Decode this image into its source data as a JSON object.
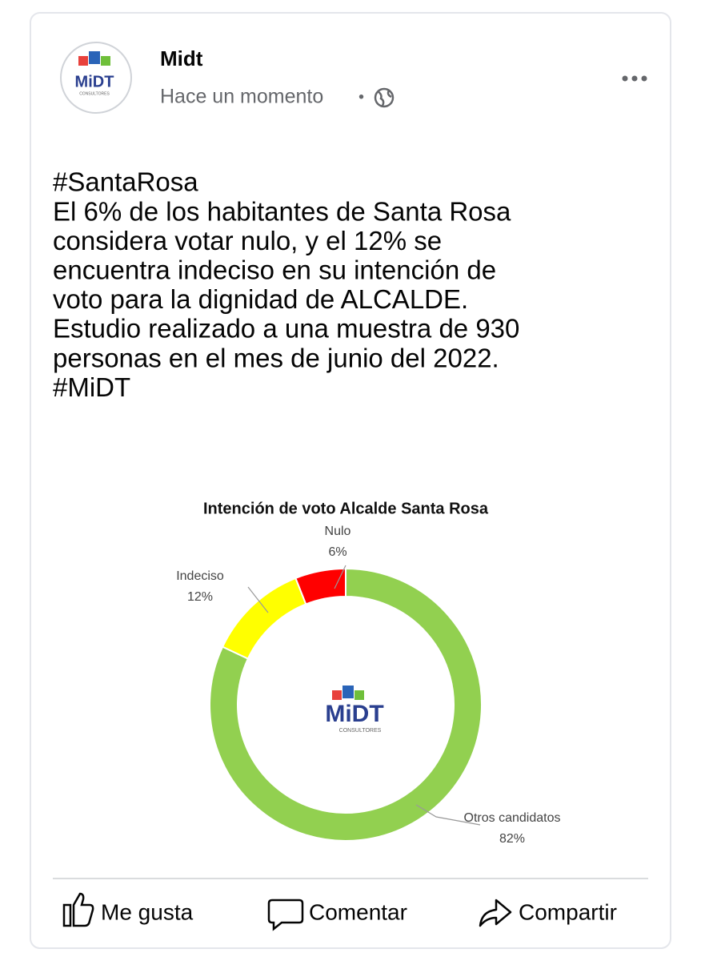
{
  "post": {
    "author": "Midt",
    "time": "Hace un momento",
    "separator": "•",
    "logo": "MiDT",
    "logo_sub": "CONSULTORES",
    "text_lines": [
      "#SantaRosa",
      "El 6% de los habitantes de Santa Rosa",
      "considera votar nulo, y el 12% se",
      "encuentra indeciso en su intención de",
      "voto para la dignidad de ALCALDE.",
      "Estudio realizado a una muestra de 930",
      "personas en el mes de junio del 2022.",
      "#MiDT"
    ],
    "actions": [
      "Me gusta",
      "Comentar",
      "Compartir"
    ]
  },
  "chart_data": {
    "type": "pie",
    "title": "Intención de voto Alcalde Santa Rosa",
    "categories": [
      "Otros candidatos",
      "Indeciso",
      "Nulo"
    ],
    "values": [
      82,
      12,
      6
    ],
    "value_labels": [
      "82%",
      "12%",
      "6%"
    ],
    "colors": [
      "#92d050",
      "#ffff00",
      "#ff0000"
    ],
    "donut": true
  }
}
